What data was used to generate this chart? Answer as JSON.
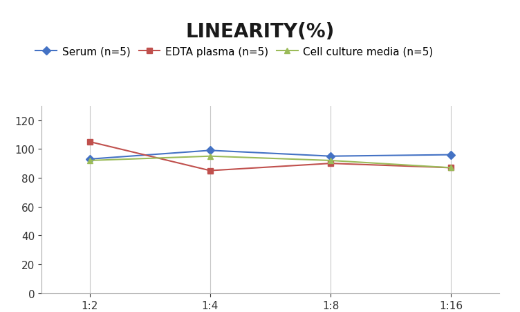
{
  "title": "LINEARITY(%)",
  "x_labels": [
    "1:2",
    "1:4",
    "1:8",
    "1:16"
  ],
  "series": [
    {
      "name": "Serum (n=5)",
      "values": [
        93,
        99,
        95,
        96
      ],
      "color": "#4472C4",
      "marker": "D",
      "marker_color": "#4472C4"
    },
    {
      "name": "EDTA plasma (n=5)",
      "values": [
        105,
        85,
        90,
        87
      ],
      "color": "#C0504D",
      "marker": "s",
      "marker_color": "#C0504D"
    },
    {
      "name": "Cell culture media (n=5)",
      "values": [
        92,
        95,
        92,
        87
      ],
      "color": "#9BBB59",
      "marker": "^",
      "marker_color": "#9BBB59"
    }
  ],
  "ylim": [
    0,
    130
  ],
  "yticks": [
    0,
    20,
    40,
    60,
    80,
    100,
    120
  ],
  "background_color": "#FFFFFF",
  "grid_color": "#C8C8C8",
  "title_fontsize": 20,
  "legend_fontsize": 11,
  "tick_fontsize": 11
}
